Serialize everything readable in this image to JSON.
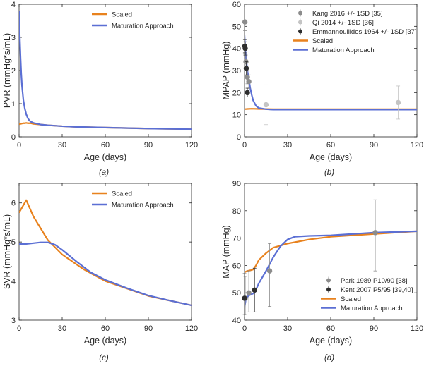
{
  "figure": {
    "panel_labels": [
      "(a)",
      "(b)",
      "(c)",
      "(d)"
    ]
  },
  "chart_data": [
    {
      "type": "line",
      "panel": "(a)",
      "xlabel": "Age (days)",
      "ylabel": "PVR (mmHg*s/mL)",
      "xlim": [
        0,
        120
      ],
      "ylim": [
        0,
        4
      ],
      "xticks": [
        0,
        30,
        60,
        90,
        120
      ],
      "yticks": [
        0,
        1,
        2,
        3,
        4
      ],
      "legend": {
        "position": "top-right",
        "entries": [
          "Scaled",
          "Maturation Approach"
        ]
      },
      "series": [
        {
          "name": "Scaled",
          "color": "#e8821e",
          "x": [
            0,
            1,
            2,
            3,
            4,
            5,
            6,
            8,
            10,
            15,
            20,
            30,
            40,
            60,
            90,
            120
          ],
          "y": [
            0.38,
            0.39,
            0.4,
            0.41,
            0.41,
            0.42,
            0.41,
            0.41,
            0.39,
            0.37,
            0.35,
            0.32,
            0.3,
            0.28,
            0.25,
            0.23
          ]
        },
        {
          "name": "Maturation Approach",
          "color": "#5b6fd4",
          "x": [
            0,
            0.5,
            1,
            1.5,
            2,
            3,
            4,
            5,
            6,
            7,
            8,
            10,
            12,
            15,
            20,
            30,
            40,
            60,
            90,
            120
          ],
          "y": [
            3.8,
            3.0,
            2.4,
            1.9,
            1.55,
            1.1,
            0.85,
            0.68,
            0.57,
            0.5,
            0.46,
            0.42,
            0.4,
            0.37,
            0.35,
            0.32,
            0.3,
            0.28,
            0.25,
            0.23
          ]
        }
      ]
    },
    {
      "type": "line",
      "panel": "(b)",
      "xlabel": "Age (days)",
      "ylabel": "MPAP (mmHg)",
      "xlim": [
        0,
        120
      ],
      "ylim": [
        0,
        60
      ],
      "xticks": [
        0,
        30,
        60,
        90,
        120
      ],
      "yticks": [
        0,
        10,
        20,
        30,
        40,
        50,
        60
      ],
      "legend": {
        "position": "top-right",
        "entries": [
          "Kang 2016 +/- 1SD [35]",
          "Qi 2014 +/- 1SD [36]",
          "Emmannouilides 1964 +/- 1SD [37]",
          "Scaled",
          "Maturation Approach"
        ]
      },
      "series": [
        {
          "name": "Scaled",
          "color": "#e8821e",
          "x": [
            0,
            2,
            5,
            10,
            20,
            30,
            60,
            90,
            120
          ],
          "y": [
            12.5,
            12.6,
            12.7,
            12.6,
            12.5,
            12.5,
            12.5,
            12.5,
            12.5
          ]
        },
        {
          "name": "Maturation Approach",
          "color": "#5b6fd4",
          "x": [
            0,
            0.3,
            0.6,
            1,
            1.5,
            2,
            3,
            4,
            5,
            6,
            8,
            10,
            15,
            20,
            30,
            60,
            90,
            120
          ],
          "y": [
            46,
            42,
            39,
            36,
            33,
            30,
            26,
            22,
            19,
            16.5,
            14,
            13,
            12.5,
            12.3,
            12.3,
            12.3,
            12.3,
            12.3
          ]
        }
      ],
      "points": [
        {
          "name": "Kang 2016 +/- 1SD [35]",
          "color": "#8c8c8c",
          "x": 0.3,
          "y": 52,
          "err": 4
        },
        {
          "name": "Kang 2016 +/- 1SD [35]",
          "color": "#8c8c8c",
          "x": 1,
          "y": 34,
          "err": 3
        },
        {
          "name": "Kang 2016 +/- 1SD [35]",
          "color": "#8c8c8c",
          "x": 2,
          "y": 27,
          "err": 3
        },
        {
          "name": "Kang 2016 +/- 1SD [35]",
          "color": "#8c8c8c",
          "x": 3,
          "y": 25,
          "err": 3
        },
        {
          "name": "Qi 2014 +/- 1SD [36]",
          "color": "#c4c4c4",
          "x": 15,
          "y": 14.5,
          "err": 9
        },
        {
          "name": "Qi 2014 +/- 1SD [36]",
          "color": "#c4c4c4",
          "x": 107,
          "y": 15.5,
          "err": 7.5
        },
        {
          "name": "Emmannouilides 1964 +/- 1SD [37]",
          "color": "#2e2e2e",
          "x": 0.2,
          "y": 41,
          "err": 3
        },
        {
          "name": "Emmannouilides 1964 +/- 1SD [37]",
          "color": "#2e2e2e",
          "x": 0.5,
          "y": 40,
          "err": 3
        },
        {
          "name": "Emmannouilides 1964 +/- 1SD [37]",
          "color": "#2e2e2e",
          "x": 1.2,
          "y": 31,
          "err": 3
        },
        {
          "name": "Emmannouilides 1964 +/- 1SD [37]",
          "color": "#2e2e2e",
          "x": 2,
          "y": 20,
          "err": 2
        }
      ]
    },
    {
      "type": "line",
      "panel": "(c)",
      "xlabel": "Age (days)",
      "ylabel": "SVR (mmHg*s/mL)",
      "xlim": [
        0,
        120
      ],
      "ylim": [
        3,
        6.5
      ],
      "xticks": [
        0,
        30,
        60,
        90,
        120
      ],
      "yticks": [
        3,
        4,
        5,
        6
      ],
      "legend": {
        "position": "top-right",
        "entries": [
          "Scaled",
          "Maturation Approach"
        ]
      },
      "series": [
        {
          "name": "Scaled",
          "color": "#e8821e",
          "x": [
            0,
            5,
            10,
            20,
            30,
            45,
            60,
            90,
            120
          ],
          "y": [
            5.75,
            6.07,
            5.65,
            5.05,
            4.68,
            4.3,
            4.0,
            3.62,
            3.38
          ]
        },
        {
          "name": "Maturation Approach",
          "color": "#5b6fd4",
          "x": [
            0,
            1,
            5,
            10,
            15,
            20,
            25,
            30,
            40,
            50,
            60,
            75,
            90,
            105,
            120
          ],
          "y": [
            4.95,
            4.95,
            4.95,
            4.97,
            4.99,
            4.99,
            4.93,
            4.8,
            4.5,
            4.22,
            4.03,
            3.82,
            3.63,
            3.5,
            3.38
          ]
        }
      ]
    },
    {
      "type": "line",
      "panel": "(d)",
      "xlabel": "Age (days)",
      "ylabel": "MAP (mmHg)",
      "xlim": [
        0,
        120
      ],
      "ylim": [
        40,
        90
      ],
      "xticks": [
        0,
        30,
        60,
        90,
        120
      ],
      "yticks": [
        40,
        50,
        60,
        70,
        80,
        90
      ],
      "legend": {
        "position": "bottom-right",
        "entries": [
          "Park 1989 P10/90 [38]",
          "Kent 2007 P5/95 [39,40]",
          "Scaled",
          "Maturation Approach"
        ]
      },
      "series": [
        {
          "name": "Scaled",
          "color": "#e8821e",
          "x": [
            0,
            2,
            4,
            6,
            8,
            10,
            15,
            20,
            30,
            45,
            60,
            90,
            120
          ],
          "y": [
            57.5,
            58,
            58.2,
            58.5,
            60,
            62,
            64.5,
            66.5,
            68,
            69.5,
            70.5,
            71.5,
            72.5
          ]
        },
        {
          "name": "Maturation Approach",
          "color": "#5b6fd4",
          "x": [
            0,
            1,
            3,
            5,
            7,
            10,
            15,
            20,
            25,
            30,
            35,
            45,
            60,
            90,
            120
          ],
          "y": [
            44.5,
            48,
            49,
            49.5,
            50,
            53.5,
            58,
            63,
            67,
            69.5,
            70.5,
            70.8,
            71,
            72,
            72.5
          ]
        }
      ],
      "points": [
        {
          "name": "Park 1989 P10/90 [38]",
          "color": "#8c8c8c",
          "x": 0.5,
          "y": 48,
          "err_low": 42,
          "err_high": 56
        },
        {
          "name": "Park 1989 P10/90 [38]",
          "color": "#8c8c8c",
          "x": 3,
          "y": 50,
          "err_low": 43,
          "err_high": 58
        },
        {
          "name": "Park 1989 P10/90 [38]",
          "color": "#8c8c8c",
          "x": 17.5,
          "y": 58,
          "err_low": 45,
          "err_high": 68
        },
        {
          "name": "Park 1989 P10/90 [38]",
          "color": "#8c8c8c",
          "x": 91,
          "y": 72,
          "err_low": 58,
          "err_high": 84
        },
        {
          "name": "Kent 2007 P5/95 [39,40]",
          "color": "#2e2e2e",
          "x": 0,
          "y": 48,
          "err_low": 42,
          "err_high": 57
        },
        {
          "name": "Kent 2007 P5/95 [39,40]",
          "color": "#2e2e2e",
          "x": 7,
          "y": 51,
          "err_low": 43,
          "err_high": 59
        }
      ]
    }
  ]
}
